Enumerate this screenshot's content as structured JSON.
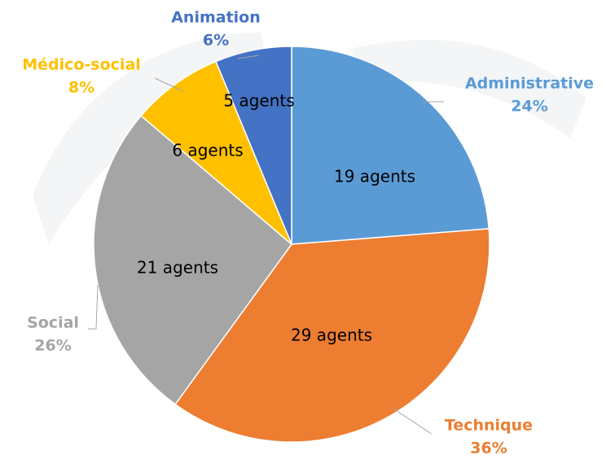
{
  "chart_data": {
    "type": "pie",
    "categories": [
      "Administrative",
      "Technique",
      "Social",
      "Médico-social",
      "Animation"
    ],
    "values": [
      19,
      29,
      21,
      6,
      5
    ],
    "value_labels": [
      "19 agents",
      "29 agents",
      "21 agents",
      "6 agents",
      "5 agents"
    ],
    "percent_labels": [
      "24%",
      "36%",
      "26%",
      "8%",
      "6%"
    ],
    "colors": [
      "#5b9bd5",
      "#ed7d31",
      "#a5a5a5",
      "#ffc000",
      "#4472c4"
    ]
  }
}
